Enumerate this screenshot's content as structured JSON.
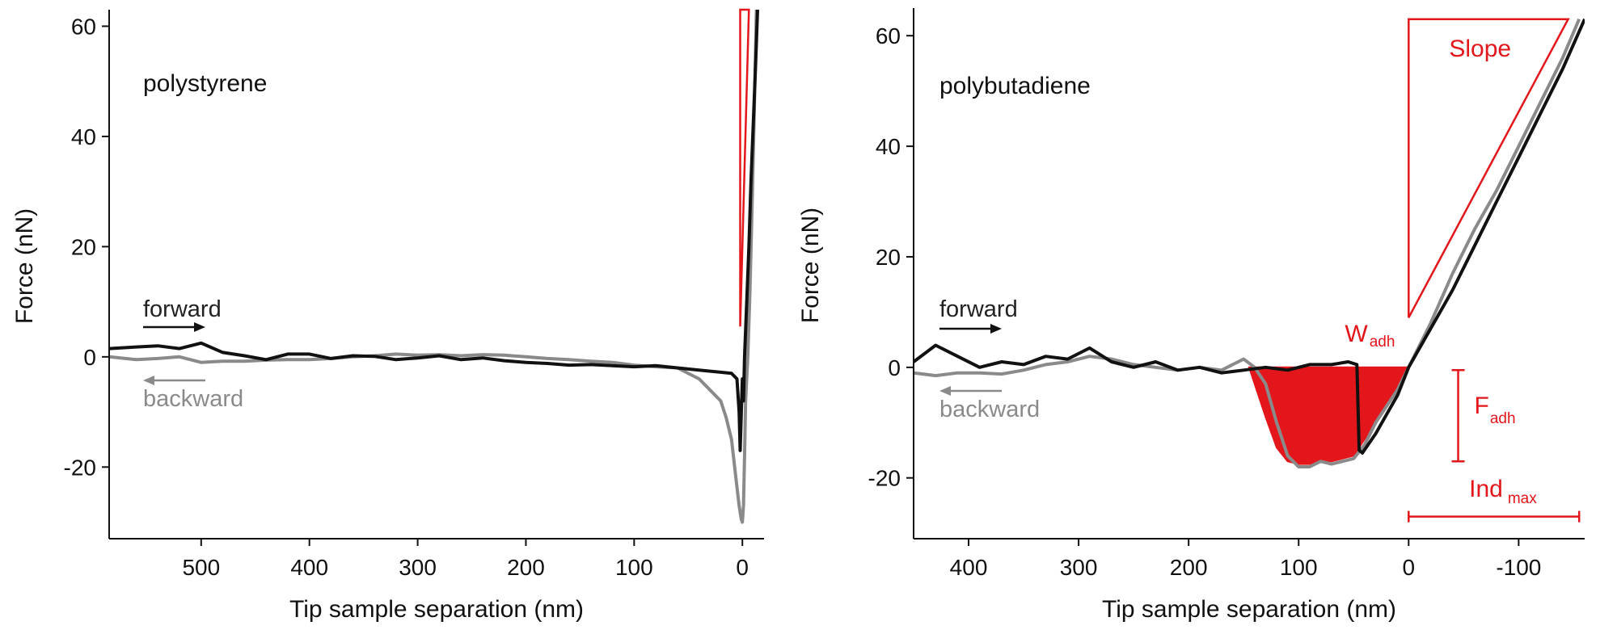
{
  "colors": {
    "forward": "#111111",
    "backward": "#8a8a8a",
    "annotation": "#e3161b",
    "axis": "#111111"
  },
  "chart_data": [
    {
      "type": "line",
      "material": "polystyrene",
      "xlabel": "Tip sample separation (nm)",
      "ylabel": "Force (nN)",
      "xlim": [
        585,
        -20
      ],
      "ylim": [
        -33,
        63
      ],
      "xticks": [
        500,
        400,
        300,
        200,
        100,
        0
      ],
      "yticks": [
        60,
        40,
        20,
        0,
        -20
      ],
      "xtick_labels": [
        "500",
        "400",
        "300",
        "200",
        "100",
        "0"
      ],
      "ytick_labels": [
        "60",
        "40",
        "20",
        "0",
        "-20"
      ],
      "legend": {
        "forward": "forward",
        "backward": "backward",
        "placement": "left"
      },
      "series": [
        {
          "name": "forward",
          "color": "#111111",
          "x": [
            585,
            560,
            540,
            520,
            500,
            480,
            460,
            440,
            420,
            400,
            380,
            360,
            340,
            320,
            300,
            280,
            260,
            240,
            220,
            200,
            180,
            160,
            140,
            120,
            100,
            80,
            60,
            40,
            20,
            10,
            5,
            3,
            2,
            1,
            0,
            -1,
            -2,
            -4,
            -6,
            -8,
            -10,
            -12,
            -14
          ],
          "y": [
            1.5,
            1.8,
            2.0,
            1.5,
            2.5,
            0.8,
            0.2,
            -0.5,
            0.5,
            0.5,
            -0.3,
            0.2,
            0.1,
            -0.5,
            -0.2,
            0.2,
            -0.5,
            -0.2,
            -0.7,
            -1.0,
            -1.2,
            -1.5,
            -1.4,
            -1.6,
            -1.8,
            -1.6,
            -2.0,
            -2.4,
            -2.8,
            -3.0,
            -4.0,
            -10.0,
            -17.0,
            -10.0,
            -4.0,
            -8.0,
            0.0,
            10.0,
            20.0,
            32.0,
            42.0,
            52.0,
            63.0
          ]
        },
        {
          "name": "backward",
          "color": "#8a8a8a",
          "x": [
            585,
            560,
            540,
            520,
            500,
            480,
            460,
            440,
            420,
            400,
            380,
            360,
            340,
            320,
            300,
            280,
            260,
            240,
            220,
            200,
            180,
            160,
            140,
            120,
            100,
            80,
            60,
            40,
            30,
            20,
            15,
            10,
            6,
            3,
            1,
            0,
            -1,
            -2,
            -3,
            -5,
            -7,
            -9,
            -11,
            -13
          ],
          "y": [
            0.0,
            -0.5,
            -0.3,
            0.0,
            -1.0,
            -0.8,
            -0.8,
            -0.6,
            -0.5,
            -0.5,
            -0.3,
            0.0,
            0.2,
            0.5,
            0.3,
            0.4,
            0.2,
            0.4,
            0.3,
            0.0,
            -0.3,
            -0.5,
            -0.8,
            -1.0,
            -1.5,
            -1.8,
            -2.0,
            -4.0,
            -6.0,
            -8.0,
            -11.0,
            -15.0,
            -22.0,
            -27.0,
            -29.5,
            -30.0,
            -27.0,
            -18.0,
            -8.0,
            0.0,
            12.0,
            28.0,
            45.0,
            63.0
          ]
        }
      ],
      "annotations": {
        "slope_triangle": {
          "x": [
            2,
            2,
            -6
          ],
          "y": [
            5.5,
            63,
            63
          ]
        }
      }
    },
    {
      "type": "line",
      "material": "polybutadiene",
      "xlabel": "Tip sample separation (nm)",
      "ylabel": "Force (nN)",
      "xlim": [
        450,
        -160
      ],
      "ylim": [
        -31,
        65
      ],
      "xticks": [
        400,
        300,
        200,
        100,
        0,
        -100
      ],
      "yticks": [
        60,
        40,
        20,
        0,
        -20
      ],
      "xtick_labels": [
        "400",
        "300",
        "200",
        "100",
        "0",
        "-100"
      ],
      "ytick_labels": [
        "60",
        "40",
        "20",
        "0",
        "-20"
      ],
      "legend": {
        "forward": "forward",
        "backward": "backward",
        "placement": "left"
      },
      "series": [
        {
          "name": "forward",
          "color": "#111111",
          "x": [
            450,
            430,
            410,
            390,
            370,
            350,
            330,
            310,
            290,
            270,
            250,
            230,
            210,
            190,
            170,
            150,
            130,
            110,
            90,
            70,
            55,
            47,
            45,
            42,
            30,
            20,
            10,
            0,
            -20,
            -40,
            -60,
            -80,
            -100,
            -120,
            -140,
            -160
          ],
          "y": [
            1.0,
            4.0,
            2.0,
            0.0,
            1.0,
            0.5,
            2.0,
            1.5,
            3.5,
            1.0,
            0.0,
            1.0,
            -0.5,
            0.0,
            -1.0,
            -0.5,
            0.0,
            -0.5,
            0.5,
            0.5,
            1.0,
            0.5,
            -15.0,
            -15.5,
            -12.0,
            -8.5,
            -5.0,
            0.0,
            7.0,
            14.0,
            22.0,
            30.0,
            38.0,
            46.0,
            54.0,
            63.0
          ]
        },
        {
          "name": "backward",
          "color": "#8a8a8a",
          "x": [
            450,
            430,
            410,
            390,
            370,
            350,
            330,
            310,
            290,
            270,
            250,
            230,
            210,
            190,
            170,
            160,
            150,
            140,
            130,
            120,
            110,
            100,
            90,
            80,
            70,
            60,
            50,
            40,
            30,
            20,
            10,
            0,
            -20,
            -40,
            -60,
            -80,
            -100,
            -120,
            -140,
            -155
          ],
          "y": [
            -1.0,
            -1.5,
            -1.0,
            -1.0,
            -1.2,
            -0.5,
            0.5,
            1.0,
            2.0,
            1.5,
            0.5,
            0.0,
            -0.5,
            0.0,
            -0.5,
            0.5,
            1.5,
            0.0,
            -3.0,
            -10.0,
            -16.0,
            -18.0,
            -18.0,
            -17.0,
            -17.5,
            -17.0,
            -16.5,
            -14.0,
            -10.0,
            -7.0,
            -4.0,
            0.0,
            8.0,
            17.0,
            25.0,
            32.0,
            40.0,
            48.0,
            56.0,
            63.0
          ]
        }
      ],
      "annotations": {
        "slope_triangle": {
          "x": [
            0,
            0,
            -145
          ],
          "y": [
            9.0,
            63,
            63
          ]
        },
        "slope_label": "Slope",
        "adhesion_area": {
          "label_main": "W",
          "label_sub": "adh",
          "x": [
            145,
            140,
            130,
            120,
            110,
            100,
            90,
            80,
            70,
            60,
            50,
            45,
            40,
            30,
            20,
            10,
            0
          ],
          "y": [
            0,
            -3.0,
            -9.0,
            -14.5,
            -17.0,
            -17.5,
            -17.5,
            -17.0,
            -17.0,
            -16.5,
            -16.0,
            -14.5,
            -13.0,
            -10.0,
            -7.0,
            -4.0,
            0
          ]
        },
        "adhesion_force": {
          "label_main": "F",
          "label_sub": "adh",
          "x": -45,
          "y_top": -0.5,
          "y_bottom": -17.0
        },
        "max_indentation": {
          "label_main": "Ind",
          "label_sub": "max",
          "x_start": 0,
          "x_end": -155,
          "y": -27.0
        }
      }
    }
  ]
}
